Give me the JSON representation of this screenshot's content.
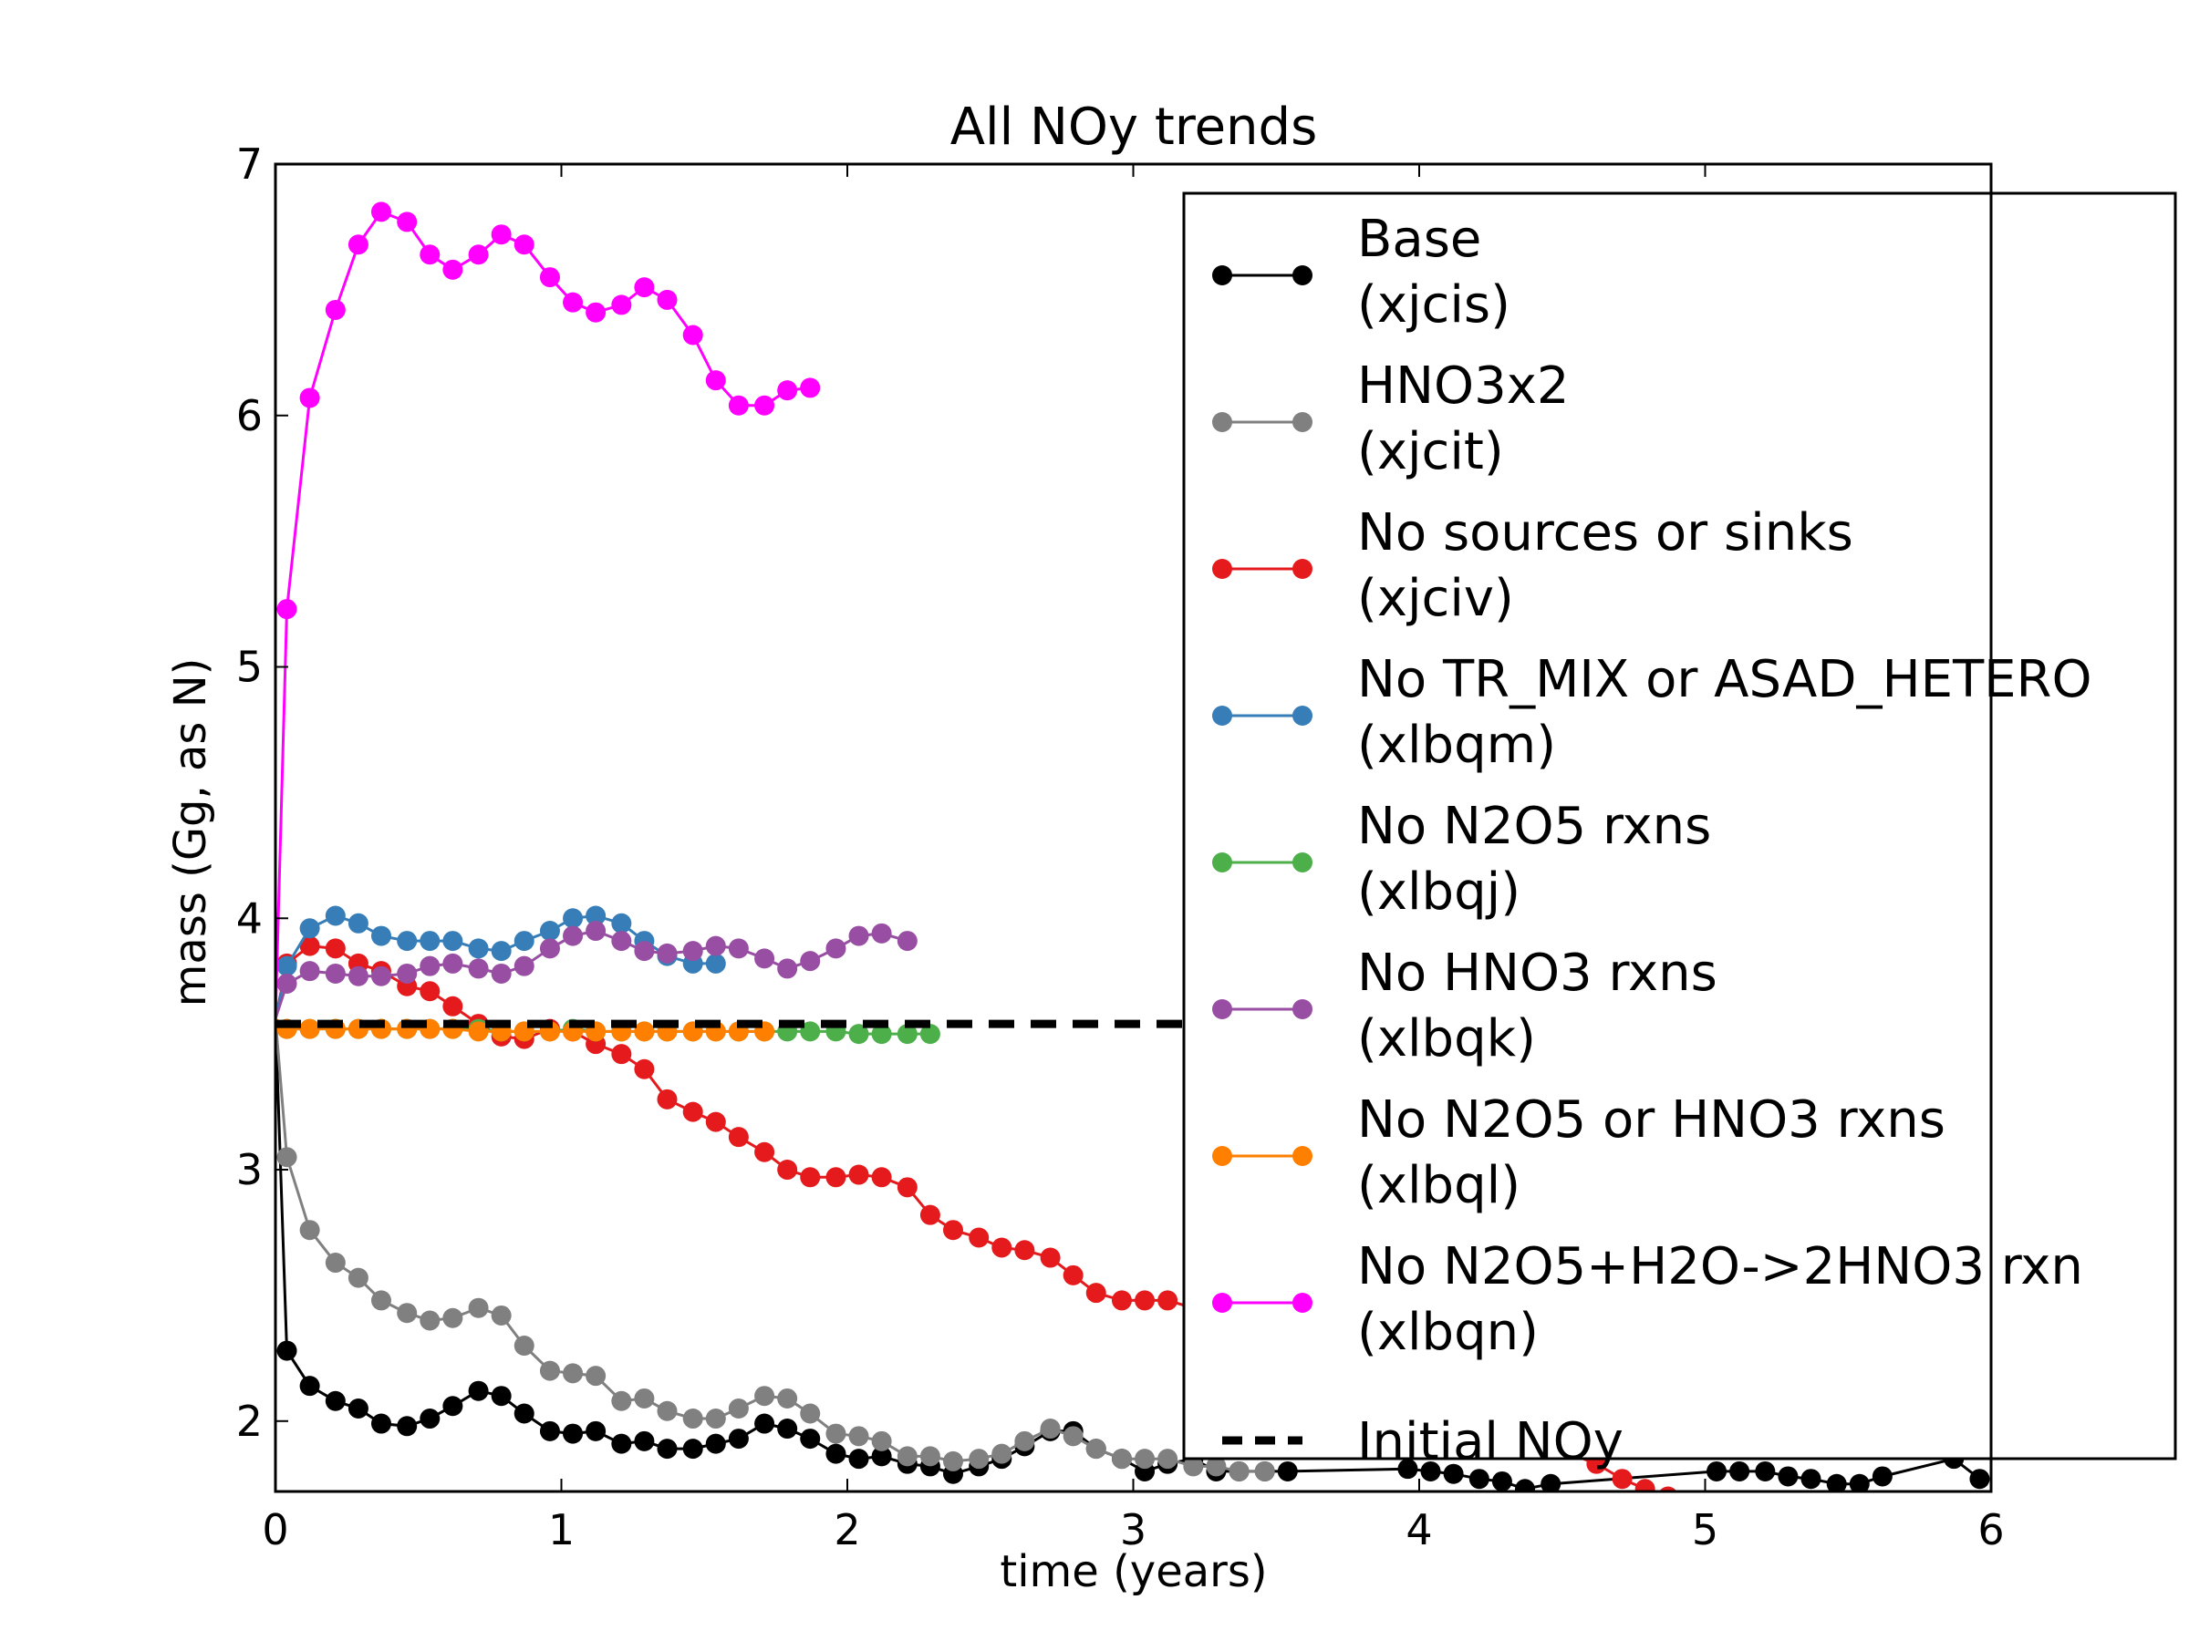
{
  "chart_data": {
    "type": "line",
    "title": "All NOy trends",
    "xlabel": "time (years)",
    "ylabel": "mass (Gg, as N)",
    "xlim": [
      0,
      6
    ],
    "ylim": [
      1.72,
      7
    ],
    "xticks": [
      {
        "value": 0,
        "label": "0"
      },
      {
        "value": 1,
        "label": "1"
      },
      {
        "value": 2,
        "label": "2"
      },
      {
        "value": 3,
        "label": "3"
      },
      {
        "value": 4,
        "label": "4"
      },
      {
        "value": 5,
        "label": "5"
      },
      {
        "value": 6,
        "label": "6"
      }
    ],
    "yticks": [
      {
        "value": 2,
        "label": "2"
      },
      {
        "value": 3,
        "label": "3"
      },
      {
        "value": 4,
        "label": "4"
      },
      {
        "value": 5,
        "label": "5"
      },
      {
        "value": 6,
        "label": "6"
      },
      {
        "value": 7,
        "label": "7"
      }
    ],
    "grid": false,
    "legend_position": "upper-right",
    "series": [
      {
        "name": "Base",
        "sub": "(xjcis)",
        "color": "#000000",
        "x": [
          0,
          0.04,
          0.12,
          0.21,
          0.29,
          0.37,
          0.46,
          0.54,
          0.62,
          0.71,
          0.79,
          0.87,
          0.96,
          1.04,
          1.12,
          1.21,
          1.29,
          1.37,
          1.46,
          1.54,
          1.62,
          1.71,
          1.79,
          1.87,
          1.96,
          2.04,
          2.12,
          2.21,
          2.29,
          2.37,
          2.46,
          2.54,
          2.62,
          2.71,
          2.79,
          2.87,
          2.96,
          3.04,
          3.12,
          3.21,
          3.29,
          3.37,
          3.46,
          3.54,
          3.96,
          4.04,
          4.12,
          4.21,
          4.29,
          4.37,
          4.46,
          5.04,
          5.12,
          5.21,
          5.29,
          5.37,
          5.46,
          5.54,
          5.62,
          5.87,
          5.96
        ],
        "y": [
          3.6,
          2.28,
          2.14,
          2.08,
          2.05,
          1.99,
          1.98,
          2.01,
          2.06,
          2.12,
          2.1,
          2.03,
          1.96,
          1.95,
          1.96,
          1.91,
          1.92,
          1.89,
          1.89,
          1.91,
          1.93,
          1.99,
          1.97,
          1.93,
          1.87,
          1.85,
          1.86,
          1.83,
          1.82,
          1.79,
          1.82,
          1.85,
          1.9,
          1.96,
          1.96,
          1.89,
          1.85,
          1.8,
          1.83,
          1.85,
          1.8,
          1.8,
          1.8,
          1.8,
          1.81,
          1.8,
          1.79,
          1.77,
          1.76,
          1.73,
          1.75,
          1.8,
          1.8,
          1.8,
          1.78,
          1.77,
          1.75,
          1.75,
          1.78,
          1.85,
          1.77
        ]
      },
      {
        "name": "HNO3x2",
        "sub": "(xjcit)",
        "color": "#808080",
        "x": [
          0,
          0.04,
          0.12,
          0.21,
          0.29,
          0.37,
          0.46,
          0.54,
          0.62,
          0.71,
          0.79,
          0.87,
          0.96,
          1.04,
          1.12,
          1.21,
          1.29,
          1.37,
          1.46,
          1.54,
          1.62,
          1.71,
          1.79,
          1.87,
          1.96,
          2.04,
          2.12,
          2.21,
          2.29,
          2.37,
          2.46,
          2.54,
          2.62,
          2.71,
          2.79,
          2.87,
          2.96,
          3.04,
          3.12,
          3.21,
          3.29,
          3.37,
          3.46
        ],
        "y": [
          3.6,
          3.05,
          2.76,
          2.63,
          2.57,
          2.48,
          2.43,
          2.4,
          2.41,
          2.45,
          2.42,
          2.3,
          2.2,
          2.19,
          2.18,
          2.08,
          2.09,
          2.04,
          2.01,
          2.01,
          2.05,
          2.1,
          2.09,
          2.03,
          1.95,
          1.94,
          1.92,
          1.86,
          1.86,
          1.84,
          1.85,
          1.87,
          1.92,
          1.97,
          1.94,
          1.89,
          1.85,
          1.85,
          1.85,
          1.82,
          1.82,
          1.8,
          1.8
        ]
      },
      {
        "name": "No sources or sinks",
        "sub": "(xjciv)",
        "color": "#e41a1c",
        "x": [
          0,
          0.04,
          0.12,
          0.21,
          0.29,
          0.37,
          0.46,
          0.54,
          0.62,
          0.71,
          0.79,
          0.87,
          0.96,
          1.04,
          1.12,
          1.21,
          1.29,
          1.37,
          1.46,
          1.54,
          1.62,
          1.71,
          1.79,
          1.87,
          1.96,
          2.04,
          2.12,
          2.21,
          2.29,
          2.37,
          2.46,
          2.54,
          2.62,
          2.71,
          2.79,
          2.87,
          2.96,
          3.04,
          3.12,
          3.21,
          4.62,
          4.71,
          4.79,
          4.87,
          4.96
        ],
        "y": [
          3.6,
          3.82,
          3.89,
          3.88,
          3.82,
          3.79,
          3.73,
          3.71,
          3.65,
          3.58,
          3.53,
          3.52,
          3.56,
          3.55,
          3.5,
          3.46,
          3.4,
          3.28,
          3.23,
          3.19,
          3.13,
          3.07,
          3.0,
          2.97,
          2.97,
          2.98,
          2.97,
          2.93,
          2.82,
          2.76,
          2.73,
          2.69,
          2.68,
          2.65,
          2.58,
          2.51,
          2.48,
          2.48,
          2.48,
          2.45,
          1.83,
          1.77,
          1.73,
          1.7,
          1.68
        ]
      },
      {
        "name": "No TR_MIX or ASAD_HETERO",
        "sub": "(xlbqm)",
        "color": "#377eb8",
        "x": [
          0,
          0.04,
          0.12,
          0.21,
          0.29,
          0.37,
          0.46,
          0.54,
          0.62,
          0.71,
          0.79,
          0.87,
          0.96,
          1.04,
          1.12,
          1.21,
          1.29,
          1.37,
          1.46,
          1.54
        ],
        "y": [
          3.6,
          3.81,
          3.96,
          4.01,
          3.98,
          3.93,
          3.91,
          3.91,
          3.91,
          3.88,
          3.87,
          3.91,
          3.95,
          4.0,
          4.01,
          3.98,
          3.91,
          3.85,
          3.82,
          3.82
        ]
      },
      {
        "name": "No N2O5 rxns",
        "sub": "(xlbqj)",
        "color": "#4daf4a",
        "x": [
          0,
          0.04,
          0.12,
          0.21,
          0.29,
          0.37,
          0.46,
          0.54,
          0.62,
          0.71,
          0.79,
          0.87,
          0.96,
          1.04,
          1.12,
          1.21,
          1.29,
          1.37,
          1.46,
          1.54,
          1.62,
          1.71,
          1.79,
          1.87,
          1.96,
          2.04,
          2.12,
          2.21,
          2.29
        ],
        "y": [
          3.6,
          3.56,
          3.56,
          3.56,
          3.56,
          3.56,
          3.56,
          3.56,
          3.56,
          3.56,
          3.55,
          3.55,
          3.55,
          3.56,
          3.55,
          3.55,
          3.55,
          3.55,
          3.55,
          3.55,
          3.55,
          3.55,
          3.55,
          3.55,
          3.55,
          3.54,
          3.54,
          3.54,
          3.54
        ]
      },
      {
        "name": "No HNO3 rxns",
        "sub": "(xlbqk)",
        "color": "#984ea3",
        "x": [
          0,
          0.04,
          0.12,
          0.21,
          0.29,
          0.37,
          0.46,
          0.54,
          0.62,
          0.71,
          0.79,
          0.87,
          0.96,
          1.04,
          1.12,
          1.21,
          1.29,
          1.37,
          1.46,
          1.54,
          1.62,
          1.71,
          1.79,
          1.87,
          1.96,
          2.04,
          2.12,
          2.21
        ],
        "y": [
          3.6,
          3.74,
          3.79,
          3.78,
          3.77,
          3.77,
          3.78,
          3.81,
          3.82,
          3.8,
          3.78,
          3.81,
          3.88,
          3.93,
          3.95,
          3.91,
          3.87,
          3.86,
          3.87,
          3.89,
          3.88,
          3.84,
          3.8,
          3.83,
          3.88,
          3.93,
          3.94,
          3.91
        ]
      },
      {
        "name": "No N2O5 or HNO3 rxns",
        "sub": "(xlbql)",
        "color": "#ff7f00",
        "x": [
          0,
          0.04,
          0.12,
          0.21,
          0.29,
          0.37,
          0.46,
          0.54,
          0.62,
          0.71,
          0.79,
          0.87,
          0.96,
          1.04,
          1.12,
          1.21,
          1.29,
          1.37,
          1.46,
          1.54,
          1.62,
          1.71
        ],
        "y": [
          3.6,
          3.56,
          3.56,
          3.56,
          3.56,
          3.56,
          3.56,
          3.56,
          3.56,
          3.55,
          3.55,
          3.55,
          3.55,
          3.55,
          3.55,
          3.55,
          3.55,
          3.55,
          3.55,
          3.55,
          3.55,
          3.55
        ]
      },
      {
        "name": "No N2O5+H2O->2HNO3 rxn",
        "sub": "(xlbqn)",
        "color": "#ff00ff",
        "x": [
          0,
          0.04,
          0.12,
          0.21,
          0.29,
          0.37,
          0.46,
          0.54,
          0.62,
          0.71,
          0.79,
          0.87,
          0.96,
          1.04,
          1.12,
          1.21,
          1.29,
          1.37,
          1.46,
          1.54,
          1.62,
          1.71,
          1.79,
          1.87
        ],
        "y": [
          3.6,
          5.23,
          6.07,
          6.42,
          6.68,
          6.81,
          6.77,
          6.64,
          6.58,
          6.64,
          6.72,
          6.68,
          6.55,
          6.45,
          6.41,
          6.44,
          6.51,
          6.46,
          6.32,
          6.14,
          6.04,
          6.04,
          6.1,
          6.11
        ]
      }
    ],
    "reference_line": {
      "name": "Initial NOy",
      "y": 3.58,
      "color": "#000000",
      "style": "dashed"
    }
  }
}
